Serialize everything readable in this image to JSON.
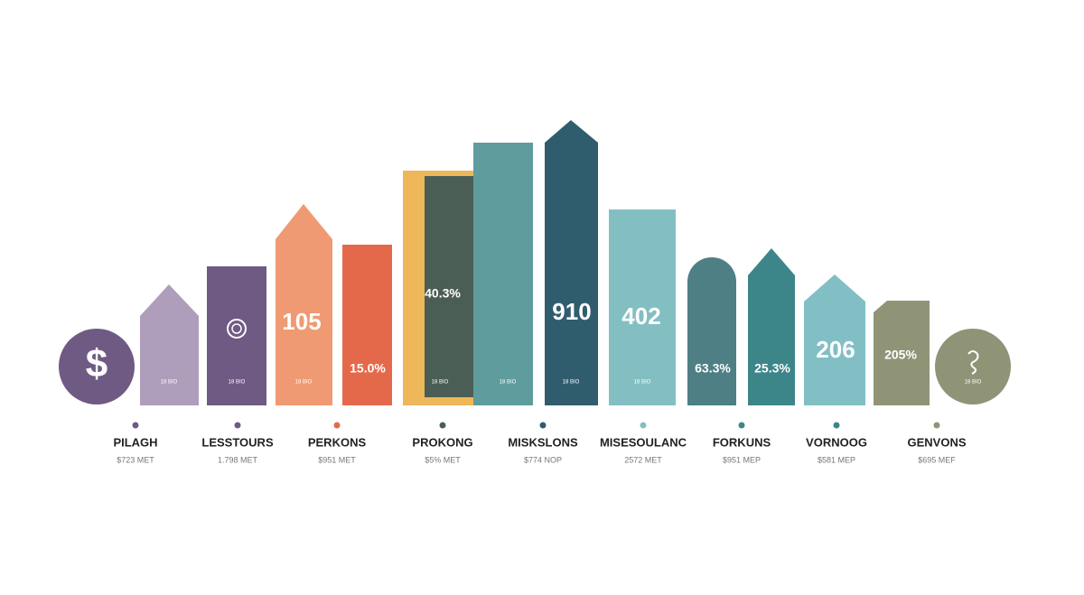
{
  "symbol": "$",
  "values": [
    "105",
    "15.0%",
    "40.3%",
    "910",
    "402",
    "63.3%",
    "25.3%",
    "206",
    "205%"
  ],
  "small_labels": [
    "18 BIO",
    "18 BIO",
    "18 BIO",
    "18 BIO",
    "18 BIO",
    "18 BIO",
    "18 BIO",
    "18 BIO"
  ],
  "items": [
    {
      "name": "PILAGH",
      "note": "$723 MET"
    },
    {
      "name": "LESSTOURS",
      "note": "1.798 MET"
    },
    {
      "name": "PERKONS",
      "note": "$951 MET"
    },
    {
      "name": "PROKONG",
      "note": "$5% MET"
    },
    {
      "name": "MISKSLONS",
      "note": "$774 NOP"
    },
    {
      "name": "MISESOULANC",
      "note": "2572 MET"
    },
    {
      "name": "FORKUNS",
      "note": "$951 MEP"
    },
    {
      "name": "VORNOOG",
      "note": "$581 MEP"
    },
    {
      "name": "GENVONS",
      "note": "$695 MEF"
    }
  ]
}
